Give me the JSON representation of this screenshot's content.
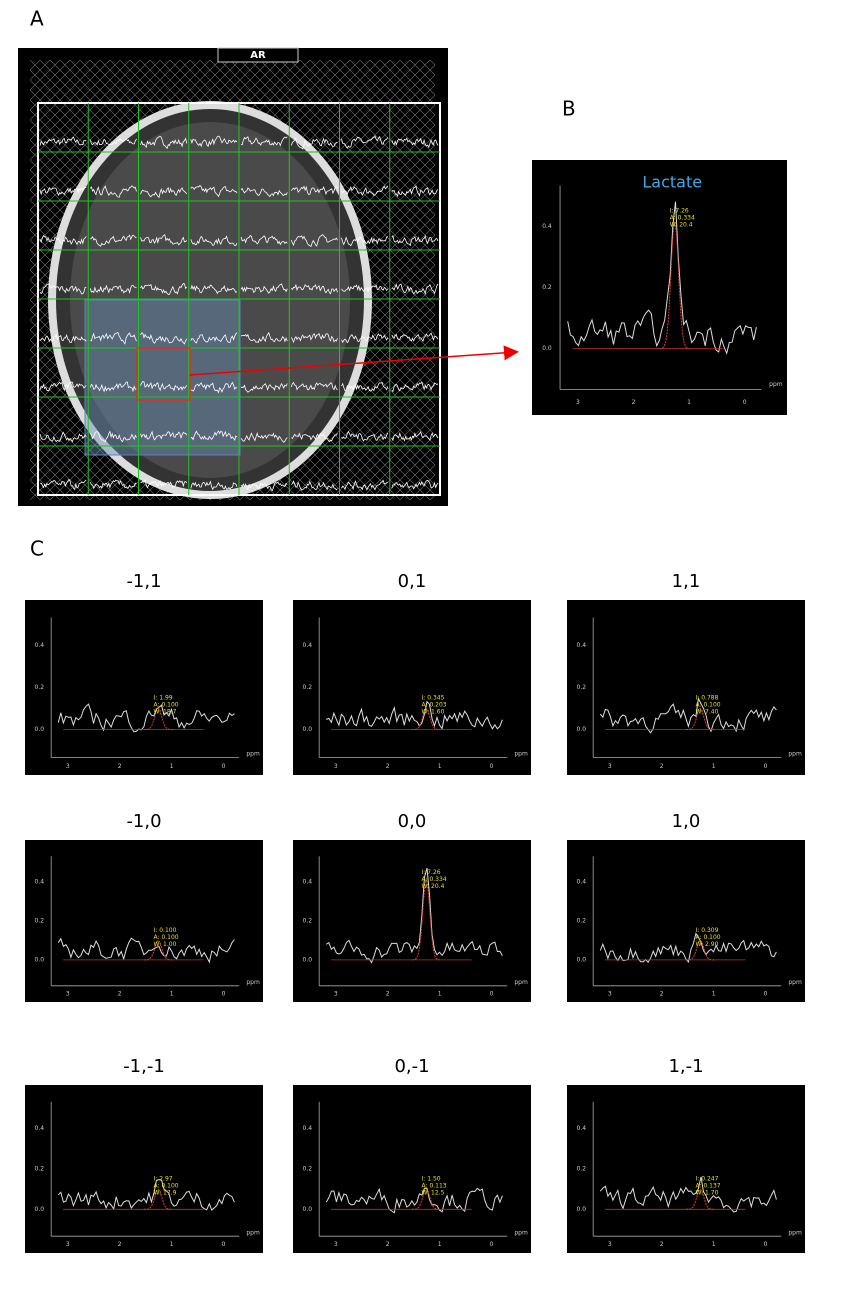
{
  "panel_labels": [
    "A",
    "B",
    "C"
  ],
  "panel_a": {
    "header": "AR"
  },
  "panel_b": {
    "title": "Lactate",
    "yticks": [
      "0.4",
      "0.2",
      "0.0"
    ],
    "xticks": [
      "3",
      "2",
      "1",
      "0"
    ],
    "xunit": "ppm",
    "fit": [
      "I: 7.26",
      "A: 0.334",
      "W: 20.4"
    ]
  },
  "panel_c": {
    "yticks": [
      "0.4",
      "0.2",
      "0.0"
    ],
    "xticks": [
      "3",
      "2",
      "1",
      "0"
    ],
    "xunit": "ppm",
    "plots": [
      {
        "title": "-1,1",
        "fit": [
          "I: 1.99",
          "A: 0.100",
          "W: 18.7"
        ]
      },
      {
        "title": "0,1",
        "fit": [
          "I: 0.345",
          "A: 0.203",
          "W: 1.60"
        ]
      },
      {
        "title": "1,1",
        "fit": [
          "I: 0.788",
          "A: 0.100",
          "W: 7.40"
        ]
      },
      {
        "title": "-1,0",
        "fit": [
          "I: 0.100",
          "A: 0.100",
          "W: 1.00"
        ]
      },
      {
        "title": "0,0",
        "fit": [
          "I: 7.26",
          "A: 0.334",
          "W: 20.4"
        ]
      },
      {
        "title": "1,0",
        "fit": [
          "I: 0.309",
          "A: 0.100",
          "W: 2.90"
        ]
      },
      {
        "title": "-1,-1",
        "fit": [
          "I: 2.97",
          "A: 0.100",
          "W: 17.9"
        ]
      },
      {
        "title": "0,-1",
        "fit": [
          "I: 1.50",
          "A: 0.113",
          "W: 12.5"
        ]
      },
      {
        "title": "1,-1",
        "fit": [
          "I: 0.247",
          "A: 0.137",
          "W: 1.70"
        ]
      }
    ]
  }
}
